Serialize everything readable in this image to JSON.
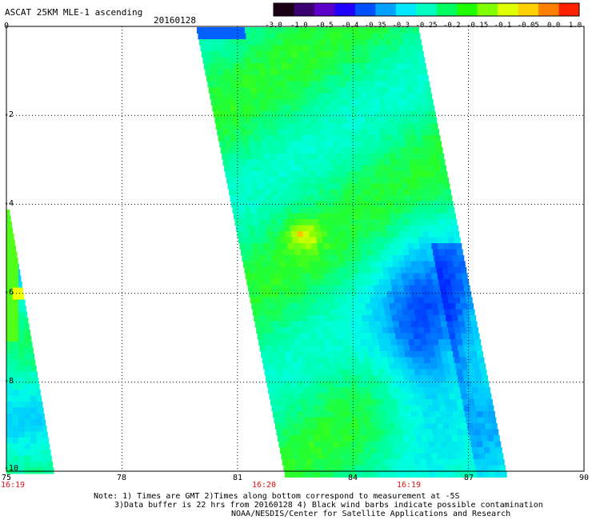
{
  "header": {
    "title": "ASCAT 25KM MLE-1 ascending",
    "date": "20160128"
  },
  "colorbar": {
    "labels": [
      "-3.0",
      "-1.0",
      "-0.5",
      "-0.4",
      "-0.35",
      "-0.3",
      "-0.25",
      "-0.2",
      "-0.15",
      "-0.1",
      "-0.05",
      "0.0",
      "1.0"
    ],
    "colors": [
      "#1a0014",
      "#3a0070",
      "#5a00c8",
      "#2000ff",
      "#0050ff",
      "#00a0ff",
      "#00e8ff",
      "#00ffc0",
      "#00ff60",
      "#20ff00",
      "#80ff00",
      "#e0ff00",
      "#ffd000",
      "#ff8000",
      "#ff2000"
    ]
  },
  "map": {
    "y_ticks": [
      "0",
      "-2",
      "-4",
      "-6",
      "-8",
      "-10"
    ],
    "x_ticks": [
      "75",
      "78",
      "81",
      "84",
      "87",
      "90"
    ],
    "time_labels": [
      "16:19",
      "16:20",
      "16:19"
    ],
    "lat_range": [
      -10,
      0
    ],
    "lon_range": [
      75,
      90
    ]
  },
  "notes": {
    "line1": "Note: 1) Times are GMT 2)Times along bottom correspond to measurement at -5S",
    "line2": "3)Data buffer is 22 hrs from 20160128 4) Black wind barbs indicate possible contamination",
    "line3": "NOAA/NESDIS/Center for Satellite Applications and Research"
  }
}
